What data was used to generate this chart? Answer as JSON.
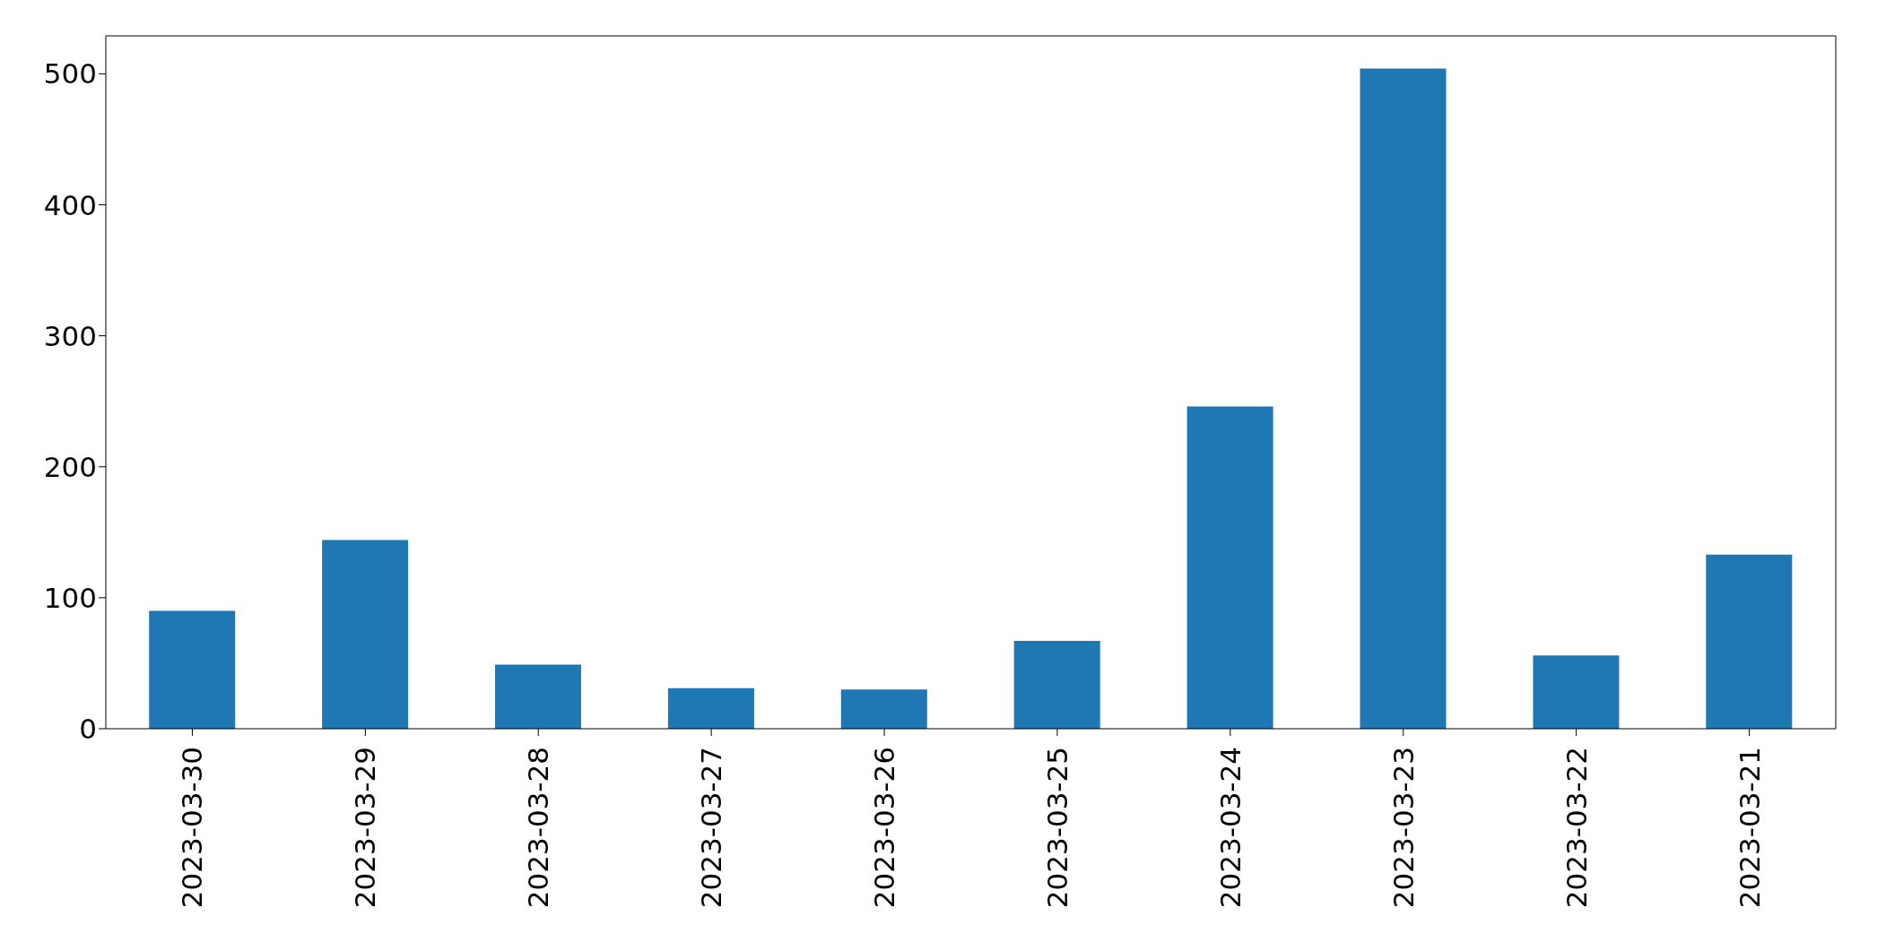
{
  "chart_data": {
    "type": "bar",
    "categories": [
      "2023-03-30",
      "2023-03-29",
      "2023-03-28",
      "2023-03-27",
      "2023-03-26",
      "2023-03-25",
      "2023-03-24",
      "2023-03-23",
      "2023-03-22",
      "2023-03-21"
    ],
    "values": [
      90,
      144,
      49,
      31,
      30,
      67,
      246,
      504,
      56,
      133
    ],
    "color": "#1f77b4",
    "ylim": [
      0,
      529
    ],
    "yticks": [
      0,
      100,
      200,
      300,
      400,
      500
    ],
    "grid": false,
    "legend": false
  }
}
